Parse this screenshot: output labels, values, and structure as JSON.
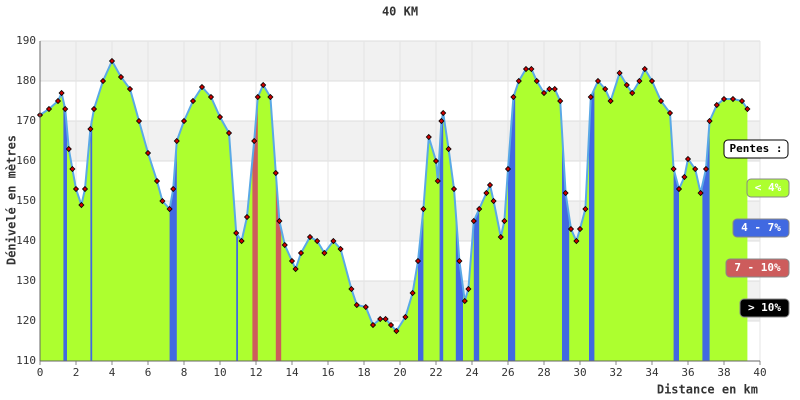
{
  "chart_data": {
    "type": "area",
    "title": "40 KM",
    "x_label": "Distance en km",
    "y_label": "Dénivelé en mètres",
    "xlim": [
      0,
      40
    ],
    "xticks": [
      0,
      2,
      4,
      6,
      8,
      10,
      12,
      14,
      16,
      18,
      20,
      22,
      24,
      26,
      28,
      30,
      32,
      34,
      36,
      38,
      40
    ],
    "ylim": [
      110,
      190
    ],
    "yticks": [
      110,
      120,
      130,
      140,
      150,
      160,
      170,
      180,
      190
    ],
    "grid": true,
    "color": "#adff2f",
    "line_color": "#5aa9e6",
    "marker_color": "#cc0000",
    "x": [
      0,
      0.5,
      1.0,
      1.2,
      1.4,
      1.6,
      1.8,
      2.0,
      2.3,
      2.5,
      2.8,
      3.0,
      3.5,
      4.0,
      4.5,
      5.0,
      5.5,
      6.0,
      6.5,
      6.8,
      7.2,
      7.4,
      7.6,
      8.0,
      8.5,
      9.0,
      9.5,
      10.0,
      10.5,
      10.9,
      11.2,
      11.5,
      11.9,
      12.1,
      12.4,
      12.8,
      13.1,
      13.3,
      13.6,
      14.0,
      14.2,
      14.5,
      15.0,
      15.4,
      15.8,
      16.3,
      16.7,
      17.3,
      17.6,
      18.1,
      18.5,
      18.9,
      19.2,
      19.5,
      19.8,
      20.3,
      20.7,
      21.0,
      21.3,
      21.6,
      22.0,
      22.1,
      22.3,
      22.4,
      22.7,
      23.0,
      23.3,
      23.6,
      23.8,
      24.1,
      24.4,
      24.8,
      25.0,
      25.2,
      25.6,
      25.8,
      26.0,
      26.3,
      26.6,
      27.0,
      27.3,
      27.6,
      28.0,
      28.3,
      28.6,
      28.9,
      29.2,
      29.5,
      29.8,
      30.0,
      30.3,
      30.6,
      31.0,
      31.4,
      31.7,
      32.2,
      32.6,
      32.9,
      33.3,
      33.6,
      34.0,
      34.5,
      35.0,
      35.2,
      35.5,
      35.8,
      36.0,
      36.4,
      36.7,
      37.0,
      37.2,
      37.6,
      38.0,
      38.5,
      39.0,
      39.3
    ],
    "values": [
      171.5,
      173,
      175,
      177,
      173,
      163,
      158,
      153,
      149,
      153,
      168,
      173,
      180,
      185,
      181,
      178,
      170,
      162,
      155,
      150,
      148,
      153,
      165,
      170,
      175,
      178.5,
      176,
      171,
      167,
      142,
      140,
      146,
      165,
      176,
      179,
      176,
      157,
      145,
      139,
      135,
      133,
      137,
      141,
      140,
      137,
      140,
      138,
      128,
      124,
      123.5,
      119,
      120.5,
      120.5,
      119,
      117.5,
      121,
      127,
      135,
      148,
      166,
      160,
      155,
      170,
      172,
      163,
      153,
      135,
      125,
      128,
      145,
      148,
      152,
      154,
      150,
      141,
      145,
      158,
      176,
      180,
      183,
      183,
      180,
      177,
      178,
      178,
      175,
      152,
      143,
      140,
      143,
      148,
      176,
      180,
      178,
      175,
      182,
      179,
      177,
      180,
      183,
      180,
      175,
      172,
      158,
      153,
      156,
      160.5,
      158,
      152,
      158,
      170,
      174,
      175.5,
      175.5,
      175,
      173
    ],
    "slope_bands": [
      {
        "x": [
          1.3,
          1.5
        ],
        "color": "#4169e1"
      },
      {
        "x": [
          2.8,
          2.9
        ],
        "color": "#4169e1"
      },
      {
        "x": [
          7.2,
          7.6
        ],
        "color": "#4169e1"
      },
      {
        "x": [
          10.9,
          11.0
        ],
        "color": "#4169e1"
      },
      {
        "x": [
          11.8,
          12.1
        ],
        "color": "#cd5c5c"
      },
      {
        "x": [
          13.1,
          13.4
        ],
        "color": "#cd5c5c"
      },
      {
        "x": [
          21.0,
          21.3
        ],
        "color": "#4169e1"
      },
      {
        "x": [
          22.2,
          22.4
        ],
        "color": "#4169e1"
      },
      {
        "x": [
          23.1,
          23.5
        ],
        "color": "#4169e1"
      },
      {
        "x": [
          24.1,
          24.4
        ],
        "color": "#4169e1"
      },
      {
        "x": [
          26.0,
          26.4
        ],
        "color": "#4169e1"
      },
      {
        "x": [
          29.0,
          29.4
        ],
        "color": "#4169e1"
      },
      {
        "x": [
          30.5,
          30.8
        ],
        "color": "#4169e1"
      },
      {
        "x": [
          35.2,
          35.5
        ],
        "color": "#4169e1"
      },
      {
        "x": [
          36.8,
          37.2
        ],
        "color": "#4169e1"
      }
    ],
    "legend": {
      "title": "Pentes :",
      "items": [
        {
          "label": "< 4%",
          "color": "#adff2f"
        },
        {
          "label": "4 - 7%",
          "color": "#4169e1"
        },
        {
          "label": "7 - 10%",
          "color": "#cd5c5c"
        },
        {
          "label": "> 10%",
          "color": "#000000"
        }
      ]
    }
  }
}
